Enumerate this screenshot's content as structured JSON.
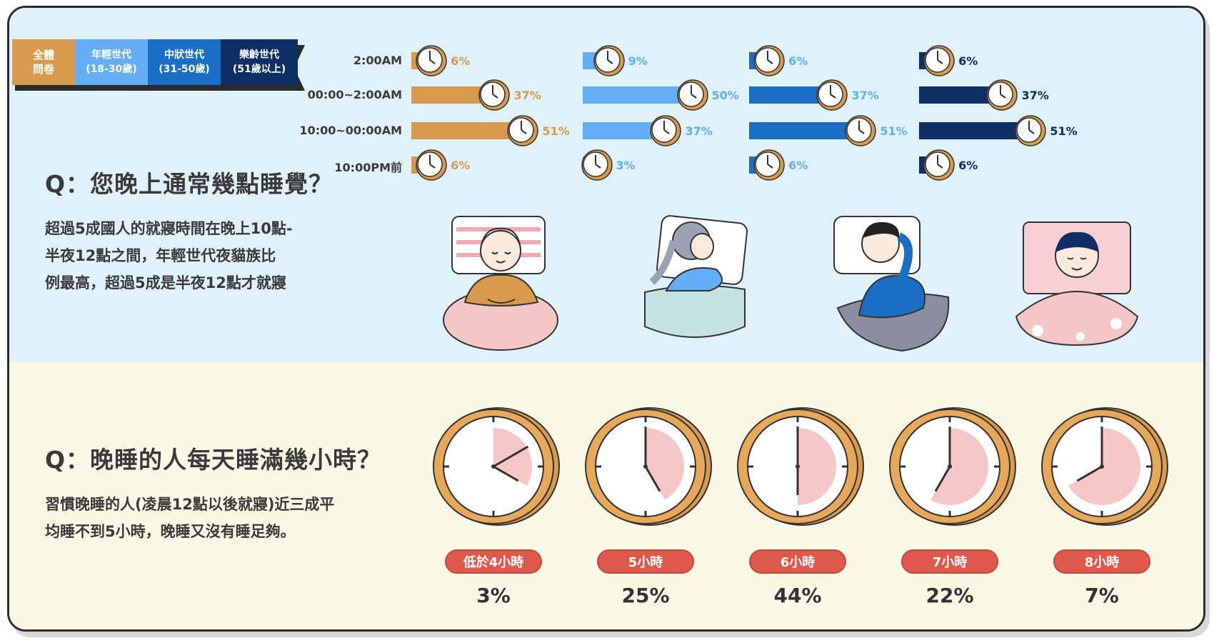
{
  "legend": [
    {
      "line1": "全體",
      "line2": "問卷",
      "color": "#d99a4e"
    },
    {
      "line1": "年輕世代",
      "line2": "(18-30歲)",
      "color": "#64aef5"
    },
    {
      "line1": "中狀世代",
      "line2": "(31-50歲)",
      "color": "#1a6fc4"
    },
    {
      "line1": "樂齡世代",
      "line2": "(51歲以上)",
      "color": "#0d2f66"
    }
  ],
  "section1": {
    "title": "Q：您晚上通常幾點睡覺？",
    "desc_lines": [
      "超過5成國人的就寢時間在晚上10點-",
      "半夜12點之間，年輕世代夜貓族比",
      "例最高，超過5成是半夜12點才就寢"
    ]
  },
  "section2": {
    "title": "Q：晚睡的人每天睡滿幾小時？",
    "desc_lines": [
      "習慣晚睡的人(凌晨12點以後就寢)近三成平",
      "均睡不到5小時，晚睡又沒有睡足夠。"
    ]
  },
  "chart_data": [
    {
      "type": "bar",
      "categories": [
        "2:00AM",
        "00:00~2:00AM",
        "10:00~00:00AM",
        "10:00PM前"
      ],
      "series": [
        {
          "name": "全體問卷",
          "color": "#d99a4e",
          "pct_color": "#d99a4e",
          "values": [
            6,
            37,
            51,
            6
          ],
          "labels": [
            "6%",
            "37%",
            "51%",
            "6%"
          ]
        },
        {
          "name": "年輕世代(18-30歲)",
          "color": "#64aef5",
          "pct_color": "#64aef5",
          "values": [
            9,
            50,
            37,
            3
          ],
          "labels": [
            "9%",
            "50%",
            "37%",
            "3%"
          ]
        },
        {
          "name": "中狀世代(31-50歲)",
          "color": "#1a6fc4",
          "pct_color": "#64aef5",
          "values": [
            6,
            37,
            51,
            6
          ],
          "labels": [
            "6%",
            "37%",
            "51%",
            "6%"
          ]
        },
        {
          "name": "樂齡世代(51歲以上)",
          "color": "#0d2f66",
          "pct_color": "#0d2f66",
          "values": [
            6,
            37,
            51,
            6
          ],
          "labels": [
            "6%",
            "37%",
            "51%",
            "6%"
          ]
        }
      ]
    },
    {
      "type": "bar",
      "categories": [
        "低於4小時",
        "5小時",
        "6小時",
        "7小時",
        "8小時"
      ],
      "values": [
        3,
        25,
        44,
        22,
        7
      ],
      "labels": [
        "3%",
        "25%",
        "44%",
        "22%",
        "7%"
      ],
      "hours": [
        4,
        5,
        6,
        7,
        8
      ]
    }
  ]
}
